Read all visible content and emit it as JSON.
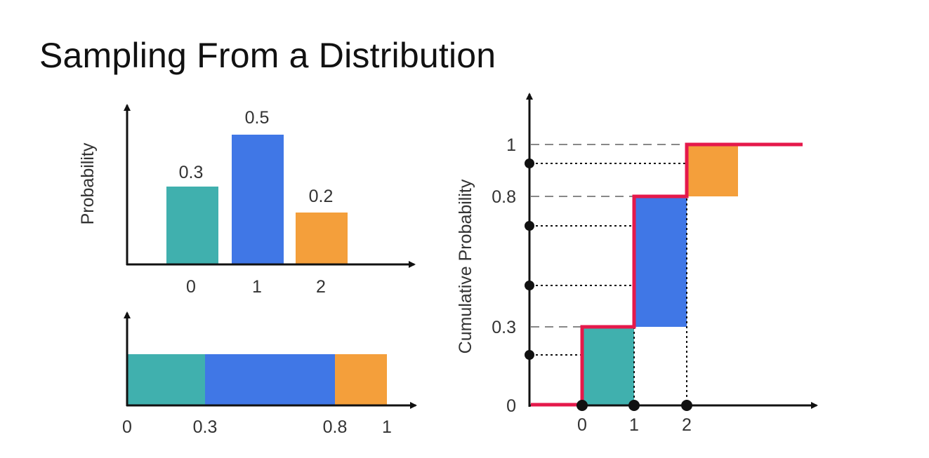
{
  "title": "Sampling From a Distribution",
  "colors": {
    "teal": "#40B0AE",
    "blue": "#4077E6",
    "orange": "#F49F3B",
    "red": "#E5194B",
    "axis": "#111111"
  },
  "chart_data": [
    {
      "type": "bar",
      "categories": [
        "0",
        "1",
        "2"
      ],
      "values": [
        0.3,
        0.5,
        0.2
      ],
      "data_labels": [
        "0.3",
        "0.5",
        "0.2"
      ],
      "ylabel": "Probability",
      "xlabel": ""
    },
    {
      "type": "bar",
      "orientation": "horizontal-stacked",
      "segments": [
        {
          "category": "0",
          "start": 0,
          "end": 0.3
        },
        {
          "category": "1",
          "start": 0.3,
          "end": 0.8
        },
        {
          "category": "2",
          "start": 0.8,
          "end": 1
        }
      ],
      "tick_labels": [
        "0",
        "0.3",
        "0.8",
        "1"
      ]
    },
    {
      "type": "line",
      "style": "step",
      "ylabel": "Cumulative Probability",
      "x_tick_labels": [
        "0",
        "1",
        "2"
      ],
      "y_tick_labels": [
        "0",
        "0.3",
        "0.8",
        "1"
      ],
      "steps": [
        {
          "x": 0,
          "from": 0,
          "to": 0.3
        },
        {
          "x": 1,
          "from": 0.3,
          "to": 0.8
        },
        {
          "x": 2,
          "from": 0.8,
          "to": 1
        }
      ],
      "sample_points": [
        0.19,
        0.46,
        0.69,
        0.93
      ]
    }
  ]
}
